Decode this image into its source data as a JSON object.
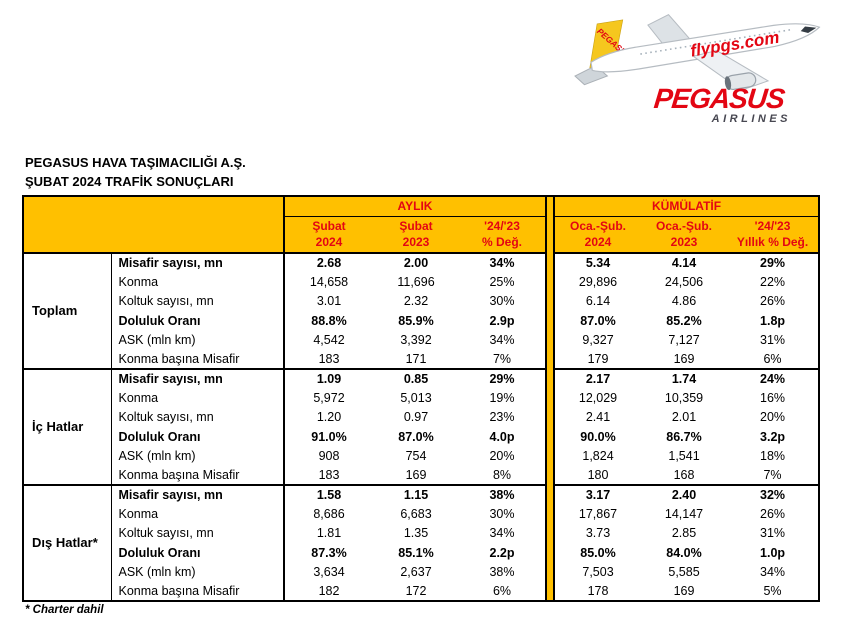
{
  "logo": {
    "fuselage_text": "flypgs.com",
    "tail_text": "PEGASUS",
    "wordmark": "PEGASUS",
    "wordmark_subtitle": "AIRLINES",
    "brand_red": "#e30613",
    "tail_yellow": "#f5c71e"
  },
  "title": {
    "line1": "PEGASUS HAVA TAŞIMACILIĞI A.Ş.",
    "line2": "ŞUBAT 2024 TRAFİK SONUÇLARI"
  },
  "table": {
    "style": {
      "header_bg": "#ffc000",
      "header_text": "#e30613",
      "border": "#000000"
    },
    "sections": [
      {
        "label": "AYLIK"
      },
      {
        "label": "KÜMÜLATİF"
      }
    ],
    "columns": [
      {
        "line1": "Şubat",
        "line2": "2024"
      },
      {
        "line1": "Şubat",
        "line2": "2023"
      },
      {
        "line1": "'24/'23",
        "line2": "% Değ."
      },
      {
        "line1": "Oca.-Şub.",
        "line2": "2024"
      },
      {
        "line1": "Oca.-Şub.",
        "line2": "2023"
      },
      {
        "line1": "'24/'23",
        "line2": "Yıllık % Değ."
      }
    ],
    "groups": [
      {
        "label": "Toplam",
        "rows": [
          {
            "metric": "Misafir sayısı, mn",
            "bold": true,
            "values": [
              "2.68",
              "2.00",
              "34%",
              "5.34",
              "4.14",
              "29%"
            ]
          },
          {
            "metric": "Konma",
            "bold": false,
            "values": [
              "14,658",
              "11,696",
              "25%",
              "29,896",
              "24,506",
              "22%"
            ]
          },
          {
            "metric": "Koltuk sayısı, mn",
            "bold": false,
            "values": [
              "3.01",
              "2.32",
              "30%",
              "6.14",
              "4.86",
              "26%"
            ]
          },
          {
            "metric": "Doluluk Oranı",
            "bold": true,
            "values": [
              "88.8%",
              "85.9%",
              "2.9p",
              "87.0%",
              "85.2%",
              "1.8p"
            ]
          },
          {
            "metric": "ASK (mln km)",
            "bold": false,
            "values": [
              "4,542",
              "3,392",
              "34%",
              "9,327",
              "7,127",
              "31%"
            ]
          },
          {
            "metric": "Konma başına Misafir",
            "bold": false,
            "values": [
              "183",
              "171",
              "7%",
              "179",
              "169",
              "6%"
            ]
          }
        ]
      },
      {
        "label": "İç Hatlar",
        "rows": [
          {
            "metric": "Misafir sayısı, mn",
            "bold": true,
            "values": [
              "1.09",
              "0.85",
              "29%",
              "2.17",
              "1.74",
              "24%"
            ]
          },
          {
            "metric": "Konma",
            "bold": false,
            "values": [
              "5,972",
              "5,013",
              "19%",
              "12,029",
              "10,359",
              "16%"
            ]
          },
          {
            "metric": "Koltuk sayısı, mn",
            "bold": false,
            "values": [
              "1.20",
              "0.97",
              "23%",
              "2.41",
              "2.01",
              "20%"
            ]
          },
          {
            "metric": "Doluluk Oranı",
            "bold": true,
            "values": [
              "91.0%",
              "87.0%",
              "4.0p",
              "90.0%",
              "86.7%",
              "3.2p"
            ]
          },
          {
            "metric": "ASK (mln km)",
            "bold": false,
            "values": [
              "908",
              "754",
              "20%",
              "1,824",
              "1,541",
              "18%"
            ]
          },
          {
            "metric": "Konma başına Misafir",
            "bold": false,
            "values": [
              "183",
              "169",
              "8%",
              "180",
              "168",
              "7%"
            ]
          }
        ]
      },
      {
        "label": "Dış Hatlar*",
        "rows": [
          {
            "metric": "Misafir sayısı, mn",
            "bold": true,
            "values": [
              "1.58",
              "1.15",
              "38%",
              "3.17",
              "2.40",
              "32%"
            ]
          },
          {
            "metric": "Konma",
            "bold": false,
            "values": [
              "8,686",
              "6,683",
              "30%",
              "17,867",
              "14,147",
              "26%"
            ]
          },
          {
            "metric": "Koltuk sayısı, mn",
            "bold": false,
            "values": [
              "1.81",
              "1.35",
              "34%",
              "3.73",
              "2.85",
              "31%"
            ]
          },
          {
            "metric": "Doluluk Oranı",
            "bold": true,
            "values": [
              "87.3%",
              "85.1%",
              "2.2p",
              "85.0%",
              "84.0%",
              "1.0p"
            ]
          },
          {
            "metric": "ASK (mln km)",
            "bold": false,
            "values": [
              "3,634",
              "2,637",
              "38%",
              "7,503",
              "5,585",
              "34%"
            ]
          },
          {
            "metric": "Konma başına Misafir",
            "bold": false,
            "values": [
              "182",
              "172",
              "6%",
              "178",
              "169",
              "5%"
            ]
          }
        ]
      }
    ]
  },
  "footnote": "* Charter dahil"
}
